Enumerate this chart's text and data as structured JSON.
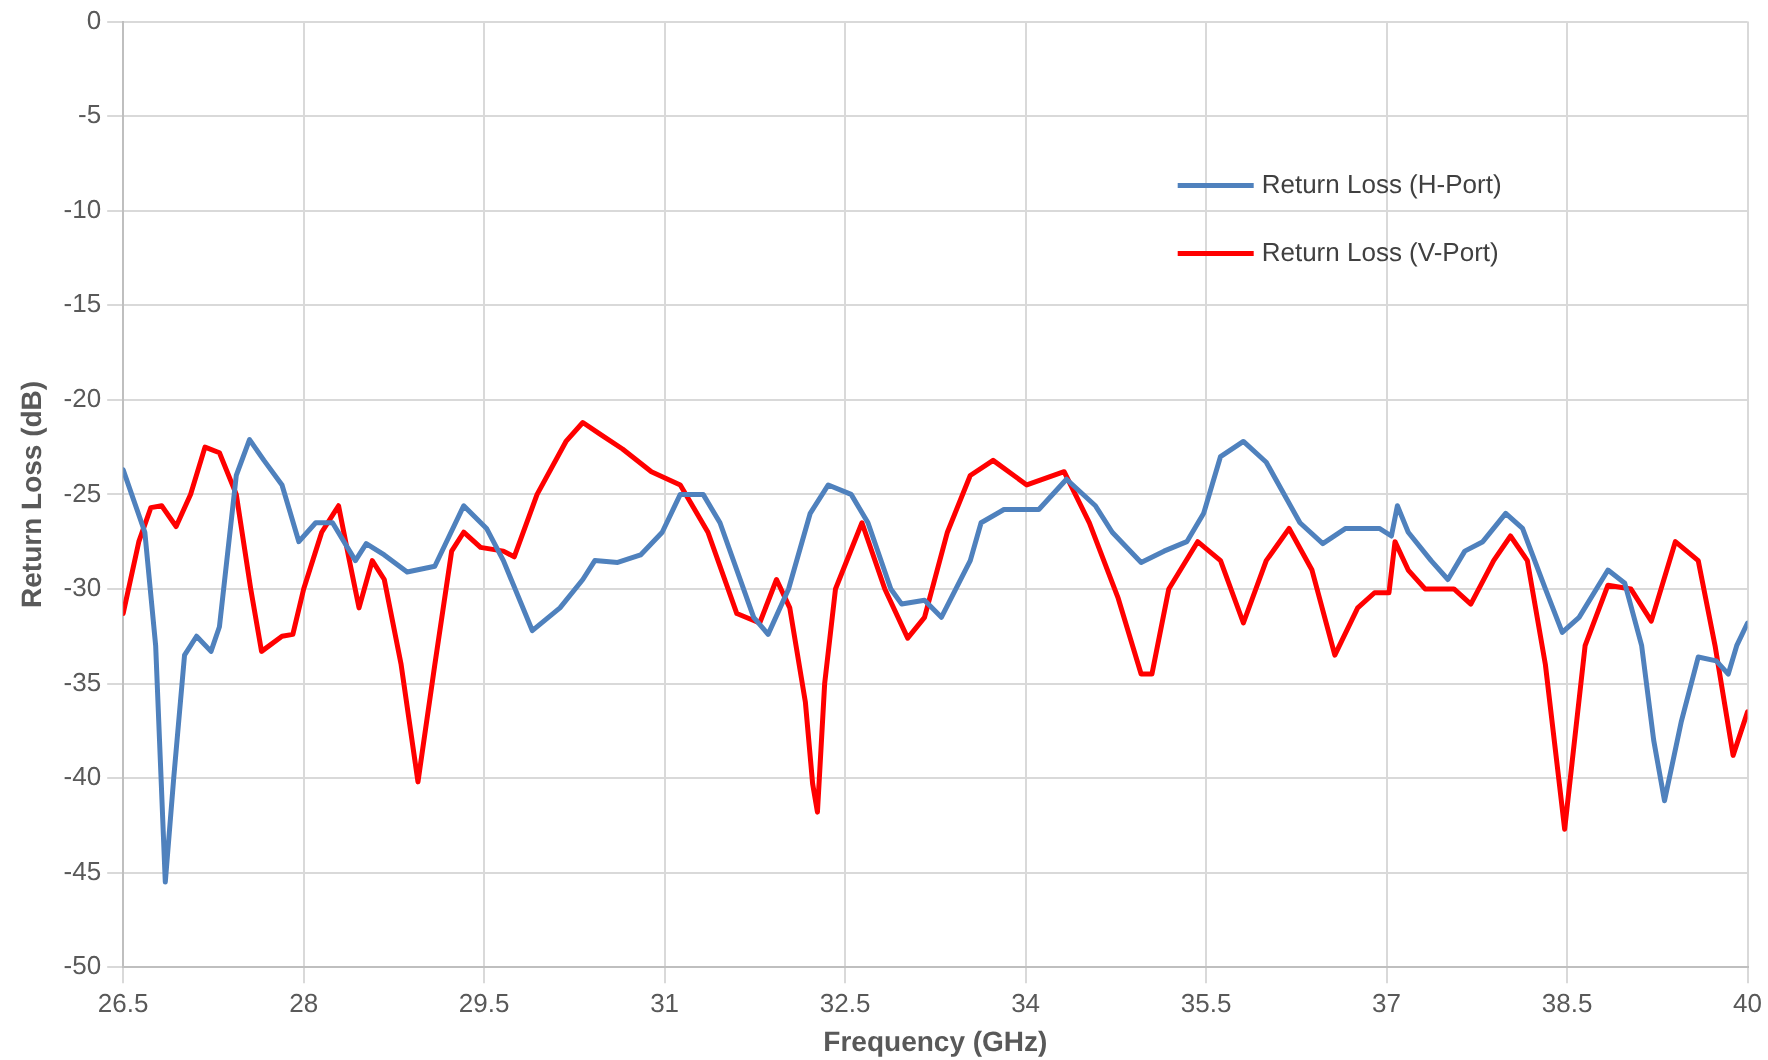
{
  "chart_data": {
    "type": "line",
    "xlabel": "Frequency (GHz)",
    "ylabel": "Return Loss (dB)",
    "xlim": [
      26.5,
      40
    ],
    "xticks": [
      26.5,
      28,
      29.5,
      31,
      32.5,
      34,
      35.5,
      37,
      38.5,
      40
    ],
    "ylim": [
      -50,
      0
    ],
    "yticks": [
      -50,
      -45,
      -40,
      -35,
      -30,
      -25,
      -20,
      -15,
      -10,
      -5,
      0
    ],
    "grid": true,
    "legend": "top right",
    "marker": "none",
    "line_style": "solid",
    "series": [
      {
        "name": "Return Loss (H-Port)",
        "color": "#4f81bd",
        "x": [
          26.5,
          26.68,
          26.77,
          26.85,
          26.92,
          27.01,
          27.11,
          27.23,
          27.3,
          27.44,
          27.55,
          27.67,
          27.82,
          27.96,
          28.1,
          28.24,
          28.43,
          28.52,
          28.67,
          28.86,
          29.09,
          29.33,
          29.52,
          29.66,
          29.9,
          30.13,
          30.32,
          30.42,
          30.61,
          30.8,
          30.98,
          31.13,
          31.32,
          31.46,
          31.74,
          31.86,
          32.03,
          32.21,
          32.36,
          32.55,
          32.69,
          32.88,
          32.97,
          33.16,
          33.3,
          33.54,
          33.63,
          33.82,
          34.11,
          34.34,
          34.58,
          34.72,
          34.96,
          35.15,
          35.34,
          35.48,
          35.62,
          35.81,
          36.0,
          36.28,
          36.47,
          36.66,
          36.94,
          37.04,
          37.09,
          37.18,
          37.37,
          37.51,
          37.65,
          37.8,
          37.99,
          38.13,
          38.32,
          38.46,
          38.6,
          38.84,
          38.98,
          39.12,
          39.22,
          39.31,
          39.45,
          39.59,
          39.74,
          39.84,
          39.91,
          40
        ],
        "values": [
          -23.7,
          -27,
          -33,
          -45.5,
          -40,
          -33.5,
          -32.5,
          -33.3,
          -32,
          -24,
          -22.1,
          -23.2,
          -24.5,
          -27.5,
          -26.5,
          -26.5,
          -28.5,
          -27.6,
          -28.2,
          -29.1,
          -28.8,
          -25.6,
          -26.8,
          -28.5,
          -32.2,
          -31,
          -29.5,
          -28.5,
          -28.6,
          -28.2,
          -27,
          -25,
          -25,
          -26.5,
          -31.5,
          -32.4,
          -30,
          -26,
          -24.5,
          -25,
          -26.5,
          -30,
          -30.8,
          -30.6,
          -31.5,
          -28.5,
          -26.5,
          -25.8,
          -25.8,
          -24.2,
          -25.6,
          -27,
          -28.6,
          -28,
          -27.5,
          -26,
          -23,
          -22.2,
          -23.3,
          -26.5,
          -27.6,
          -26.8,
          -26.8,
          -27.2,
          -25.6,
          -27,
          -28.5,
          -29.5,
          -28,
          -27.5,
          -26,
          -26.8,
          -30,
          -32.3,
          -31.5,
          -29,
          -29.7,
          -33,
          -38,
          -41.2,
          -37,
          -33.6,
          -33.8,
          -34.5,
          -33,
          -31.8
        ]
      },
      {
        "name": "Return Loss (V-Port)",
        "color": "#ff0000",
        "x": [
          26.5,
          26.63,
          26.73,
          26.82,
          26.94,
          27.06,
          27.18,
          27.3,
          27.44,
          27.56,
          27.65,
          27.82,
          27.91,
          28.0,
          28.15,
          28.29,
          28.38,
          28.46,
          28.57,
          28.67,
          28.81,
          28.95,
          29.09,
          29.23,
          29.33,
          29.47,
          29.66,
          29.75,
          29.94,
          30.18,
          30.32,
          30.46,
          30.65,
          30.89,
          31.13,
          31.36,
          31.6,
          31.79,
          31.93,
          32.04,
          32.17,
          32.23,
          32.27,
          32.33,
          32.42,
          32.64,
          32.83,
          33.02,
          33.16,
          33.35,
          33.54,
          33.73,
          34.01,
          34.32,
          34.53,
          34.77,
          34.96,
          35.05,
          35.19,
          35.43,
          35.62,
          35.81,
          36.0,
          36.19,
          36.38,
          36.57,
          36.76,
          36.9,
          37.02,
          37.07,
          37.18,
          37.32,
          37.56,
          37.7,
          37.89,
          38.03,
          38.17,
          38.32,
          38.48,
          38.65,
          38.84,
          39.03,
          39.2,
          39.4,
          39.59,
          39.73,
          39.88,
          40
        ],
        "values": [
          -31.3,
          -27.5,
          -25.7,
          -25.6,
          -26.7,
          -25,
          -22.5,
          -22.8,
          -25,
          -30,
          -33.3,
          -32.5,
          -32.4,
          -30,
          -27,
          -25.6,
          -28.5,
          -31,
          -28.5,
          -29.5,
          -34,
          -40.2,
          -34,
          -28,
          -27,
          -27.8,
          -28,
          -28.3,
          -25,
          -22.2,
          -21.2,
          -21.8,
          -22.6,
          -23.8,
          -24.5,
          -27,
          -31.3,
          -31.8,
          -29.5,
          -31,
          -36,
          -40.3,
          -41.8,
          -35,
          -30,
          -26.5,
          -30,
          -32.6,
          -31.5,
          -27,
          -24,
          -23.2,
          -24.5,
          -23.8,
          -26.5,
          -30.5,
          -34.5,
          -34.5,
          -30,
          -27.5,
          -28.5,
          -31.8,
          -28.5,
          -26.8,
          -29,
          -33.5,
          -31,
          -30.2,
          -30.2,
          -27.5,
          -29,
          -30,
          -30,
          -30.8,
          -28.5,
          -27.2,
          -28.5,
          -34,
          -42.7,
          -33,
          -29.8,
          -30,
          -31.7,
          -27.5,
          -28.5,
          -33,
          -38.8,
          -36.5
        ]
      }
    ]
  }
}
